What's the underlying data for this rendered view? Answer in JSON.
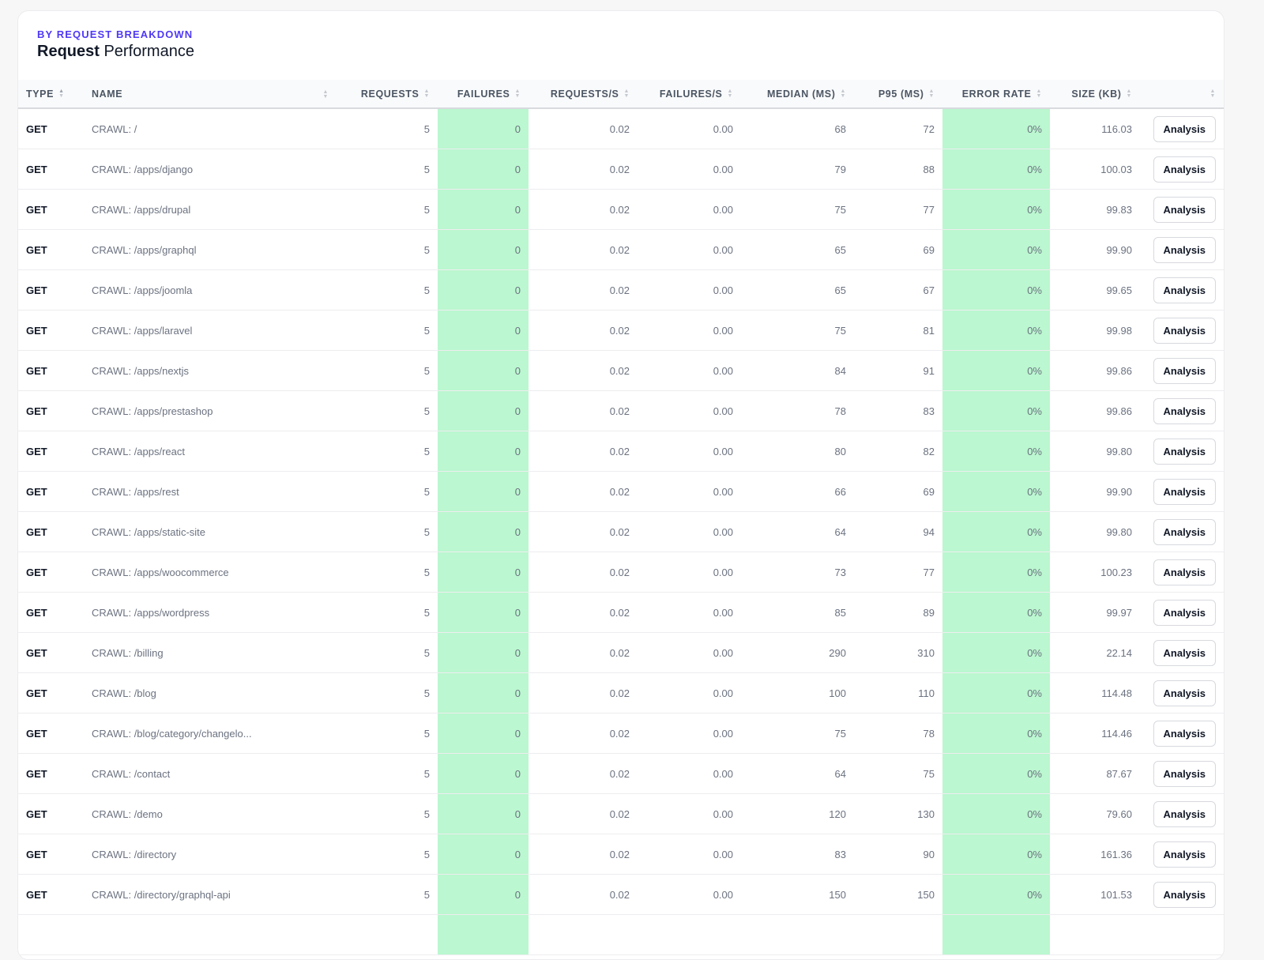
{
  "header": {
    "eyebrow": "BY REQUEST BREAKDOWN",
    "title_bold": "Request",
    "title_rest": " Performance"
  },
  "colors": {
    "accent": "#4f39f6",
    "success_cell": "#bbf7d0"
  },
  "columns": [
    "TYPE",
    "NAME",
    "REQUESTS",
    "FAILURES",
    "REQUESTS/S",
    "FAILURES/S",
    "MEDIAN (MS)",
    "P95 (MS)",
    "ERROR RATE",
    "SIZE (KB)",
    ""
  ],
  "action_label": "Analysis",
  "rows": [
    [
      "GET",
      "CRAWL: /",
      "5",
      "0",
      "0.02",
      "0.00",
      "68",
      "72",
      "0%",
      "116.03"
    ],
    [
      "GET",
      "CRAWL: /apps/django",
      "5",
      "0",
      "0.02",
      "0.00",
      "79",
      "88",
      "0%",
      "100.03"
    ],
    [
      "GET",
      "CRAWL: /apps/drupal",
      "5",
      "0",
      "0.02",
      "0.00",
      "75",
      "77",
      "0%",
      "99.83"
    ],
    [
      "GET",
      "CRAWL: /apps/graphql",
      "5",
      "0",
      "0.02",
      "0.00",
      "65",
      "69",
      "0%",
      "99.90"
    ],
    [
      "GET",
      "CRAWL: /apps/joomla",
      "5",
      "0",
      "0.02",
      "0.00",
      "65",
      "67",
      "0%",
      "99.65"
    ],
    [
      "GET",
      "CRAWL: /apps/laravel",
      "5",
      "0",
      "0.02",
      "0.00",
      "75",
      "81",
      "0%",
      "99.98"
    ],
    [
      "GET",
      "CRAWL: /apps/nextjs",
      "5",
      "0",
      "0.02",
      "0.00",
      "84",
      "91",
      "0%",
      "99.86"
    ],
    [
      "GET",
      "CRAWL: /apps/prestashop",
      "5",
      "0",
      "0.02",
      "0.00",
      "78",
      "83",
      "0%",
      "99.86"
    ],
    [
      "GET",
      "CRAWL: /apps/react",
      "5",
      "0",
      "0.02",
      "0.00",
      "80",
      "82",
      "0%",
      "99.80"
    ],
    [
      "GET",
      "CRAWL: /apps/rest",
      "5",
      "0",
      "0.02",
      "0.00",
      "66",
      "69",
      "0%",
      "99.90"
    ],
    [
      "GET",
      "CRAWL: /apps/static-site",
      "5",
      "0",
      "0.02",
      "0.00",
      "64",
      "94",
      "0%",
      "99.80"
    ],
    [
      "GET",
      "CRAWL: /apps/woocommerce",
      "5",
      "0",
      "0.02",
      "0.00",
      "73",
      "77",
      "0%",
      "100.23"
    ],
    [
      "GET",
      "CRAWL: /apps/wordpress",
      "5",
      "0",
      "0.02",
      "0.00",
      "85",
      "89",
      "0%",
      "99.97"
    ],
    [
      "GET",
      "CRAWL: /billing",
      "5",
      "0",
      "0.02",
      "0.00",
      "290",
      "310",
      "0%",
      "22.14"
    ],
    [
      "GET",
      "CRAWL: /blog",
      "5",
      "0",
      "0.02",
      "0.00",
      "100",
      "110",
      "0%",
      "114.48"
    ],
    [
      "GET",
      "CRAWL: /blog/category/changelo...",
      "5",
      "0",
      "0.02",
      "0.00",
      "75",
      "78",
      "0%",
      "114.46"
    ],
    [
      "GET",
      "CRAWL: /contact",
      "5",
      "0",
      "0.02",
      "0.00",
      "64",
      "75",
      "0%",
      "87.67"
    ],
    [
      "GET",
      "CRAWL: /demo",
      "5",
      "0",
      "0.02",
      "0.00",
      "120",
      "130",
      "0%",
      "79.60"
    ],
    [
      "GET",
      "CRAWL: /directory",
      "5",
      "0",
      "0.02",
      "0.00",
      "83",
      "90",
      "0%",
      "161.36"
    ],
    [
      "GET",
      "CRAWL: /directory/graphql-api",
      "5",
      "0",
      "0.02",
      "0.00",
      "150",
      "150",
      "0%",
      "101.53"
    ]
  ]
}
